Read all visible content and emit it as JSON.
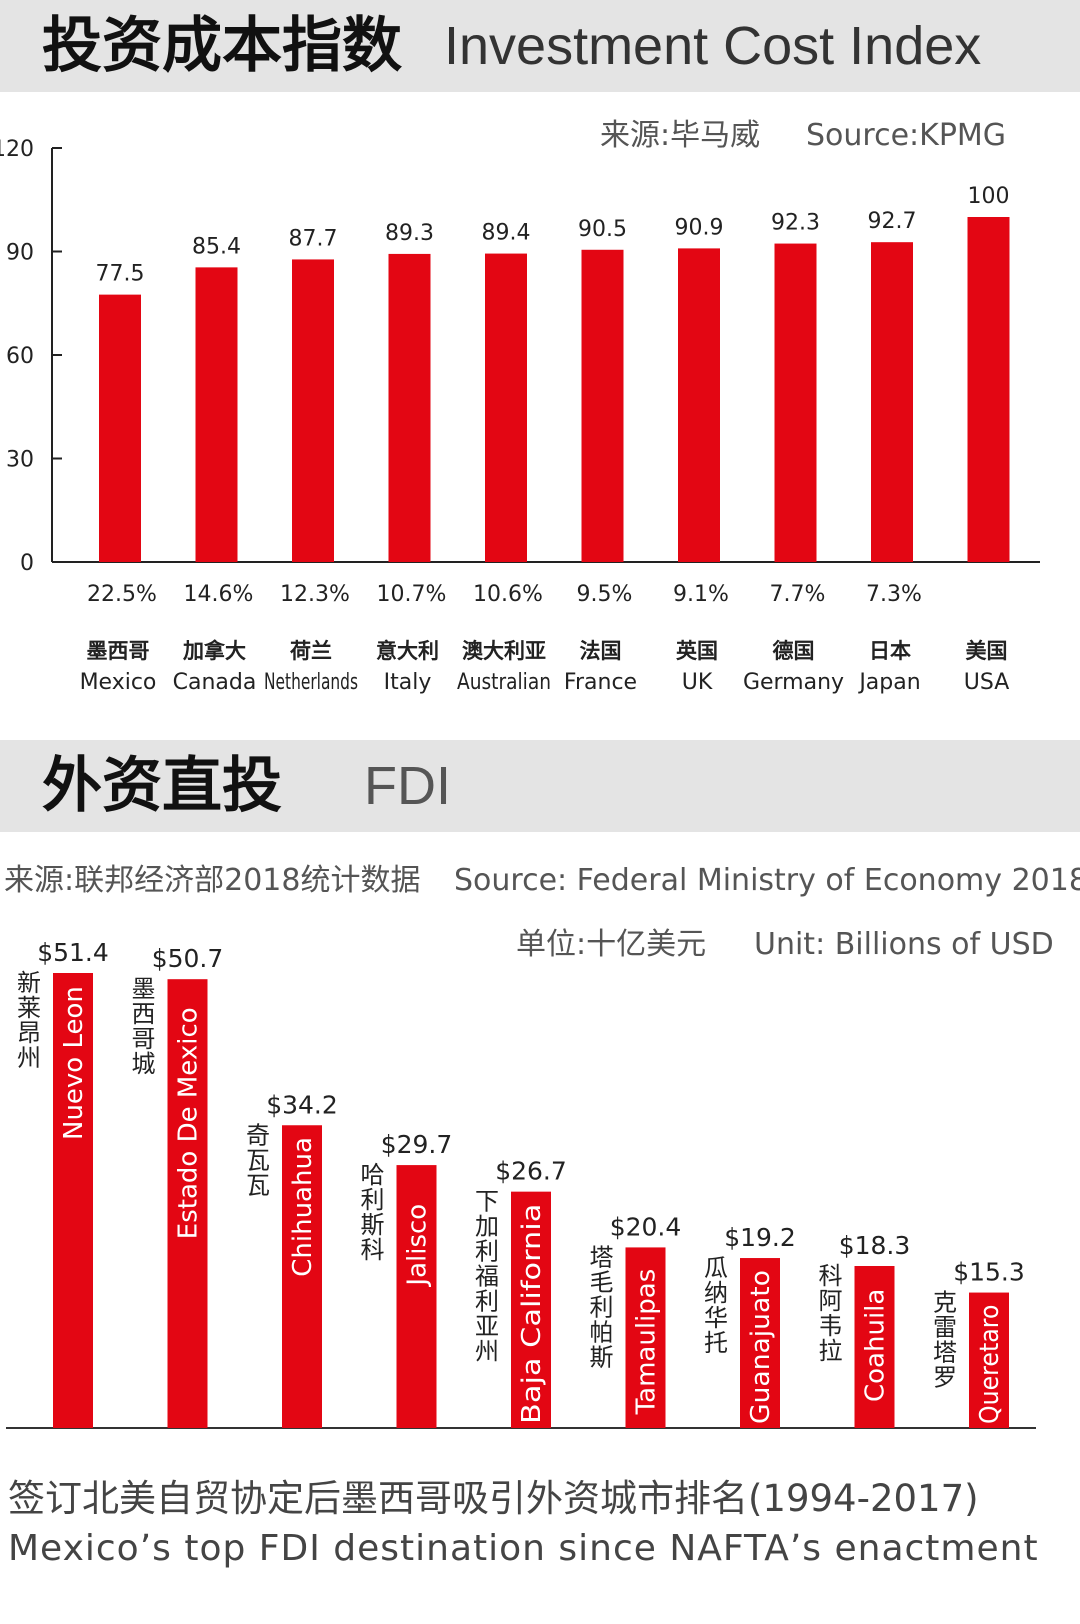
{
  "section1": {
    "title_zh": "投资成本指数",
    "title_en": "Investment Cost Index",
    "source_zh": "来源:毕马威",
    "source_en": "Source:KPMG"
  },
  "section2": {
    "title_zh": "外资直投",
    "title_en": "FDI",
    "source_zh": "来源:联邦经济部2018统计数据",
    "source_en": "Source: Federal Ministry of Economy 2018",
    "unit_zh": "单位:十亿美元",
    "unit_en": "Unit: Billions of USD",
    "caption_zh": "签订北美自贸协定后墨西哥吸引外资城市排名(1994-2017)",
    "caption_en": "Mexico’s top FDI destination since NAFTA’s enactment"
  },
  "colors": {
    "bar": "#e30613",
    "band": "#e4e4e4"
  },
  "chart_data": [
    {
      "type": "bar",
      "title": "Investment Cost Index",
      "ylim": [
        0,
        120
      ],
      "yticks": [
        "0",
        "30",
        "60",
        "90",
        "120"
      ],
      "categories_zh": [
        "墨西哥",
        "加拿大",
        "荷兰",
        "意大利",
        "澳大利亚",
        "法国",
        "英国",
        "德国",
        "日本",
        "美国"
      ],
      "categories": [
        "Mexico",
        "Canada",
        "Netherlands",
        "Italy",
        "Australian",
        "France",
        "UK",
        "Germany",
        "Japan",
        "USA"
      ],
      "values": [
        77.5,
        85.4,
        87.7,
        89.3,
        89.4,
        90.5,
        90.9,
        92.3,
        92.7,
        100
      ],
      "value_labels": [
        "77.5",
        "85.4",
        "87.7",
        "89.3",
        "89.4",
        "90.5",
        "90.9",
        "92.3",
        "92.7",
        "100"
      ],
      "advantage_labels": [
        "22.5%",
        "14.6%",
        "12.3%",
        "10.7%",
        "10.6%",
        "9.5%",
        "9.1%",
        "7.7%",
        "7.3%",
        ""
      ]
    },
    {
      "type": "bar",
      "title": "FDI",
      "ylabel": "Billions of USD",
      "categories": [
        "Nuevo Leon",
        "Estado De Mexico",
        "Chihuahua",
        "Jalisco",
        "Baja California",
        "Tamaulipas",
        "Guanajuato",
        "Coahuila",
        "Queretaro"
      ],
      "categories_zh": [
        "新莱昂州",
        "墨西哥城",
        "奇瓦瓦",
        "哈利斯科",
        "下加利福利亚州",
        "塔毛利帕斯",
        "瓜纳华托",
        "科阿韦拉",
        "克雷塔罗"
      ],
      "values": [
        51.4,
        50.7,
        34.2,
        29.7,
        26.7,
        20.4,
        19.2,
        18.3,
        15.3
      ],
      "value_labels": [
        "$51.4",
        "$50.7",
        "$34.2",
        "$29.7",
        "$26.7",
        "$20.4",
        "$19.2",
        "$18.3",
        "$15.3"
      ]
    }
  ]
}
